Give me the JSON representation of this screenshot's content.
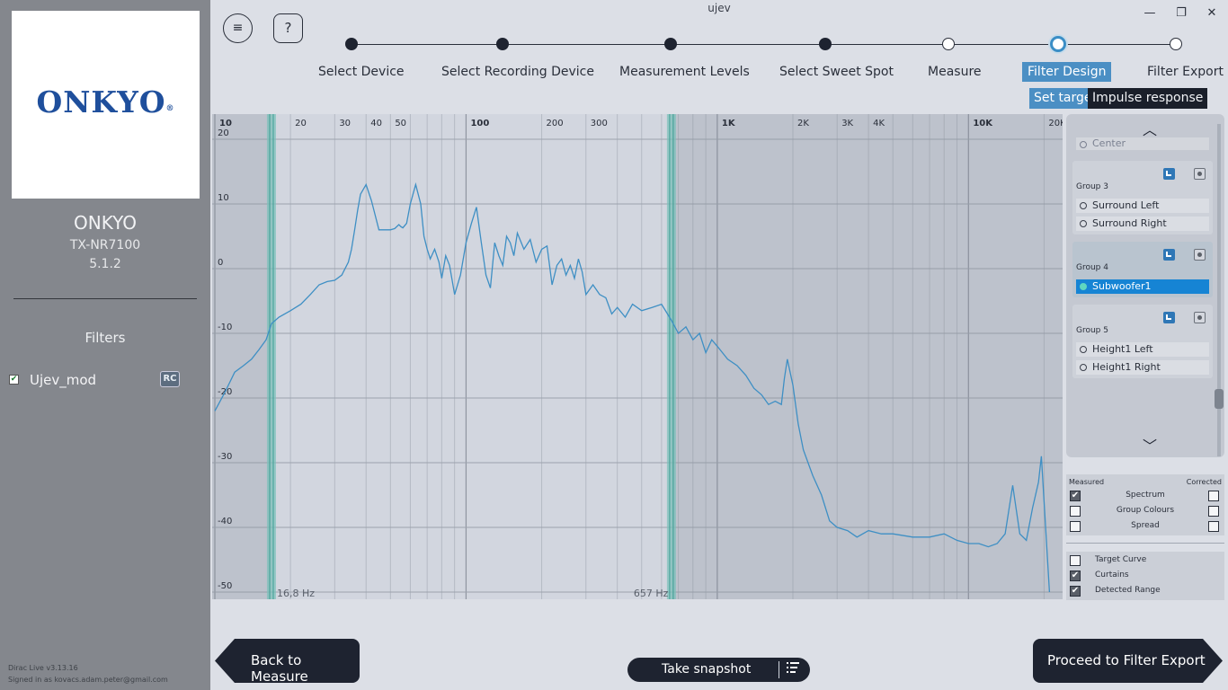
{
  "window": {
    "title": "ujev",
    "minimize_glyph": "—",
    "maximize_glyph": "❐",
    "close_glyph": "✕"
  },
  "sidebar": {
    "logo_text": "ONKYO",
    "logo_mark": "®",
    "brand": "ONKYO",
    "model": "TX-NR7100",
    "config": "5.1.2",
    "filters_heading": "Filters",
    "filters": [
      {
        "name": "Ujev_mod",
        "checked": true,
        "badge": "RC"
      }
    ],
    "version": "Dirac Live v3.13.16",
    "signed_in": "Signed in as kovacs.adam.peter@gmail.com"
  },
  "toolbar": {
    "menu_icon": "hamburger-icon",
    "menu_glyph": "≡",
    "help_glyph": "?"
  },
  "steps": [
    {
      "label": "Select Device",
      "state": "done"
    },
    {
      "label": "Select Recording Device",
      "state": "done"
    },
    {
      "label": "Measurement Levels",
      "state": "done"
    },
    {
      "label": "Select Sweet Spot",
      "state": "done"
    },
    {
      "label": "Measure",
      "state": "todo"
    },
    {
      "label": "Filter Design",
      "state": "current"
    },
    {
      "label": "Filter Export",
      "state": "todo"
    }
  ],
  "subtabs": {
    "target": "Set target",
    "impulse": "Impulse response"
  },
  "chart_data": {
    "type": "line",
    "x_scale": "log",
    "xlim": [
      10,
      22000
    ],
    "ylim": [
      -50,
      20
    ],
    "x_ticks": [
      {
        "v": 10,
        "label": "10",
        "bold": true
      },
      {
        "v": 20,
        "label": "20"
      },
      {
        "v": 30,
        "label": "30"
      },
      {
        "v": 40,
        "label": "40"
      },
      {
        "v": 50,
        "label": "50"
      },
      {
        "v": 100,
        "label": "100",
        "bold": true
      },
      {
        "v": 200,
        "label": "200"
      },
      {
        "v": 300,
        "label": "300"
      },
      {
        "v": 1000,
        "label": "1K",
        "bold": true
      },
      {
        "v": 2000,
        "label": "2K"
      },
      {
        "v": 3000,
        "label": "3K"
      },
      {
        "v": 4000,
        "label": "4K"
      },
      {
        "v": 10000,
        "label": "10K",
        "bold": true
      },
      {
        "v": 20000,
        "label": "20K"
      }
    ],
    "y_ticks": [
      20,
      10,
      0,
      -10,
      -20,
      -30,
      -40,
      -50
    ],
    "curtain_low_hz": 16.8,
    "curtain_high_hz": 657,
    "curtain_low_label": "16,8 Hz",
    "curtain_high_label": "657 Hz",
    "series": [
      {
        "color": "#3e8fc4",
        "x": [
          10,
          11,
          12,
          13,
          14,
          15,
          16,
          16.8,
          18,
          20,
          22,
          24,
          26,
          28,
          30,
          32,
          34,
          35,
          36,
          37,
          38,
          40,
          42,
          45,
          48,
          50,
          52,
          54,
          55,
          56,
          58,
          60,
          63,
          66,
          68,
          70,
          72,
          75,
          78,
          80,
          83,
          86,
          90,
          95,
          100,
          105,
          110,
          115,
          120,
          125,
          130,
          135,
          140,
          145,
          150,
          155,
          160,
          170,
          180,
          190,
          200,
          210,
          220,
          230,
          240,
          250,
          260,
          270,
          280,
          290,
          300,
          320,
          340,
          360,
          380,
          400,
          430,
          460,
          500,
          550,
          600,
          657,
          700,
          750,
          800,
          850,
          900,
          950,
          1000,
          1100,
          1200,
          1300,
          1400,
          1500,
          1600,
          1700,
          1800,
          1850,
          1900,
          2000,
          2100,
          2200,
          2400,
          2600,
          2800,
          3000,
          3300,
          3600,
          4000,
          4500,
          5000,
          6000,
          7000,
          8000,
          9000,
          10000,
          11000,
          12000,
          13000,
          14000,
          15000,
          16000,
          17000,
          18000,
          19000,
          19500,
          20000,
          21000
        ],
        "y": [
          -22,
          -19,
          -16,
          -15,
          -14,
          -12.5,
          -11,
          -8.5,
          -7.5,
          -6.5,
          -5.5,
          -4,
          -2.5,
          -2,
          -1.8,
          -1,
          1,
          3,
          6,
          9,
          11.5,
          13,
          10.5,
          6,
          6,
          6,
          6.2,
          6.8,
          6.5,
          6.3,
          7,
          10,
          13,
          10,
          5,
          3,
          1.5,
          3,
          1,
          -1.5,
          2,
          0.5,
          -4,
          -1,
          4,
          7,
          9.5,
          4,
          -1,
          -3,
          4,
          2,
          0.5,
          5,
          4,
          2,
          5.5,
          3,
          4.5,
          1,
          3,
          3.5,
          -2.5,
          0.5,
          1.5,
          -1,
          0.5,
          -1.5,
          1.5,
          -0.5,
          -4,
          -2.5,
          -4,
          -4.5,
          -7,
          -6,
          -7.5,
          -5.5,
          -6.5,
          -6,
          -5.5,
          -8,
          -10,
          -9,
          -11,
          -10,
          -13,
          -11,
          -12,
          -14,
          -15,
          -16.5,
          -18.5,
          -19.5,
          -21,
          -20.5,
          -21,
          -17,
          -14,
          -18,
          -24,
          -28,
          -32,
          -35,
          -39,
          -40,
          -40.5,
          -41.5,
          -40.5,
          -41,
          -41,
          -41.5,
          -41.5,
          -41,
          -42,
          -42.5,
          -42.5,
          -43,
          -42.5,
          -41,
          -33.5,
          -41,
          -42,
          -37,
          -33,
          -29,
          -36,
          -50
        ]
      }
    ]
  },
  "channel_panel": {
    "up_glyph": "︿",
    "down_glyph": "﹀",
    "center_label": "Center",
    "groups": [
      {
        "name": "Group 3",
        "channels": [
          "Surround Left",
          "Surround Right"
        ]
      },
      {
        "name": "Group 4",
        "channels": [
          "Subwoofer1"
        ],
        "selected": true
      },
      {
        "name": "Group 5",
        "channels": [
          "Height1 Left",
          "Height1 Right"
        ]
      }
    ]
  },
  "display_options": {
    "measured_heading": "Measured",
    "corrected_heading": "Corrected",
    "rows": [
      {
        "label": "Spectrum",
        "measured": true,
        "corrected": false
      },
      {
        "label": "Group Colours",
        "measured": false,
        "corrected": false
      },
      {
        "label": "Spread",
        "measured": false,
        "corrected": false
      }
    ],
    "toggles": [
      {
        "label": "Target Curve",
        "checked": false
      },
      {
        "label": "Curtains",
        "checked": true
      },
      {
        "label": "Detected Range",
        "checked": true
      }
    ]
  },
  "bottom": {
    "back_label": "Back to Measure",
    "snapshot_label": "Take snapshot",
    "snapshot_icon": "list-icon",
    "forward_label": "Proceed to Filter Export"
  }
}
